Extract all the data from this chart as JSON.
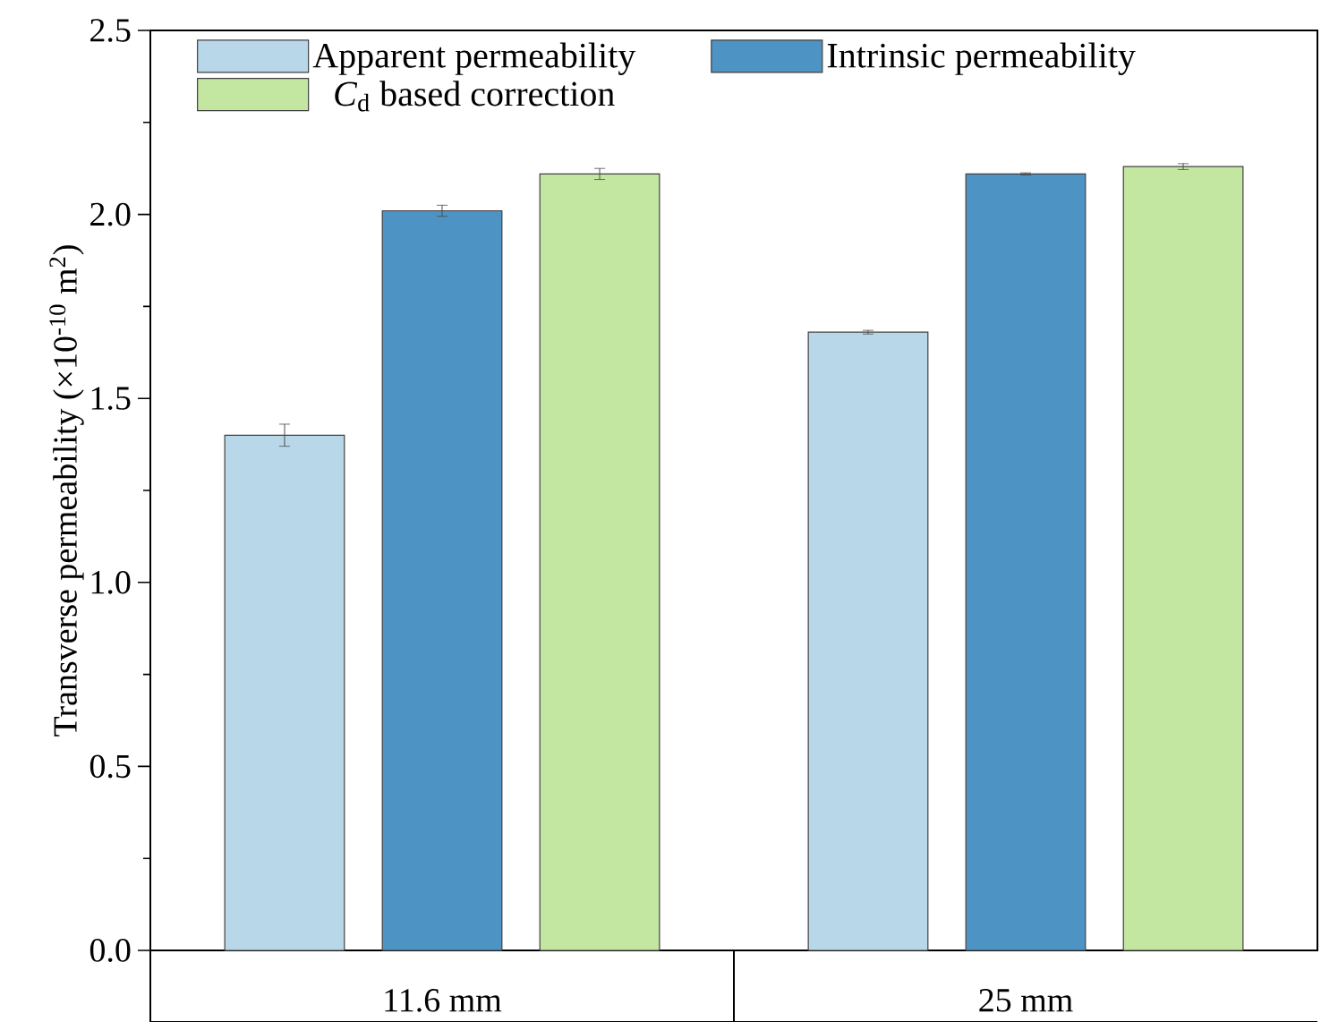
{
  "chart_data": {
    "type": "bar",
    "ylabel": "Transverse permeability (×10$^{-10}$ m$^{2}$)",
    "categories": [
      "11.6 mm",
      "25 mm"
    ],
    "series": [
      {
        "name": "Apparent permeability",
        "color": "#b8d8ea",
        "values": [
          1.4,
          1.68
        ],
        "errors": [
          0.03,
          0.005
        ]
      },
      {
        "name": "Intrinsic permeability",
        "color": "#4d93c3",
        "values": [
          2.01,
          2.11
        ],
        "errors": [
          0.015,
          0.003
        ]
      },
      {
        "name": "*C*$_{d}$ based correction",
        "color": "#c3e6a1",
        "values": [
          2.11,
          2.13
        ],
        "errors": [
          0.015,
          0.008
        ]
      }
    ],
    "ylim": [
      0,
      2.5
    ],
    "yticks": [
      {
        "value": 0,
        "label": "0.0"
      },
      0.5,
      {
        "value": 1,
        "label": "1.0"
      },
      1.5,
      {
        "value": 2,
        "label": "2.0"
      },
      2.5
    ],
    "legend": "top",
    "grid": false
  }
}
